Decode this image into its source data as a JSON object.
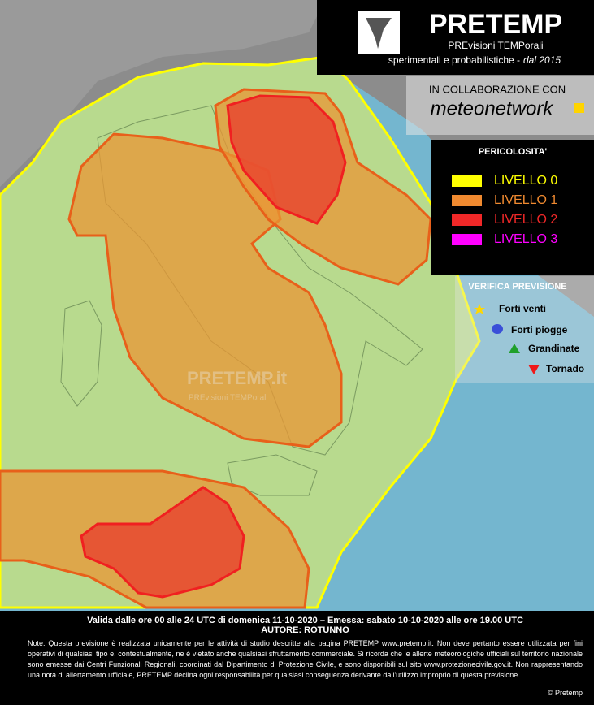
{
  "header": {
    "title": "PRETEMP",
    "subtitle": "PREvisioni TEMPorali",
    "tagline": "sperimentali e probabilistiche -",
    "since": "dal 2015"
  },
  "collaboration": {
    "label": "IN COLLABORAZIONE CON",
    "partner": "meteonetwork"
  },
  "hazard_legend": {
    "title": "PERICOLOSITA'",
    "levels": [
      {
        "label": "LIVELLO 0",
        "color": "#ffff00"
      },
      {
        "label": "LIVELLO 1",
        "color": "#f08a30"
      },
      {
        "label": "LIVELLO 2",
        "color": "#f02828"
      },
      {
        "label": "LIVELLO 3",
        "color": "#ff00ff"
      }
    ]
  },
  "verification_legend": {
    "title": "VERIFICA PREVISIONE",
    "items": [
      "Forti venti",
      "Forti piogge",
      "Grandinate",
      "Tornado"
    ]
  },
  "watermark": {
    "title": "PRETEMP.it",
    "subtitle": "PREvisioni TEMPorali"
  },
  "footer": {
    "validity": "Valida dalle ore 00 alle 24 UTC di domenica 11-10-2020 – Emessa: sabato 10-10-2020 alle ore 19.00 UTC",
    "author": "AUTORE: ROTUNNO",
    "note": [
      "Note: Questa previsione è realizzata unicamente per le attività di studio descritte alla pagina PRETEMP ",
      "www.pretemp.it",
      ". Non deve pertanto essere utilizzata per fini operativi di qualsiasi tipo e, contestualmente, ne è vietato anche qualsiasi sfruttamento commerciale. Si ricorda che le allerte meteorologiche ufficiali sul territorio nazionale sono emesse dai Centri Funzionali Regionali, coordinati dal Dipartimento di Protezione Civile, e sono disponibili sul sito ",
      "www.protezionecivile.gov.it",
      ". Non rappresentando una nota di allertamento ufficiale, PRETEMP declina ogni responsabilità per qualsiasi conseguenza derivante dall'utilizzo improprio di questa previsione."
    ],
    "copyright": "© Pretemp"
  }
}
